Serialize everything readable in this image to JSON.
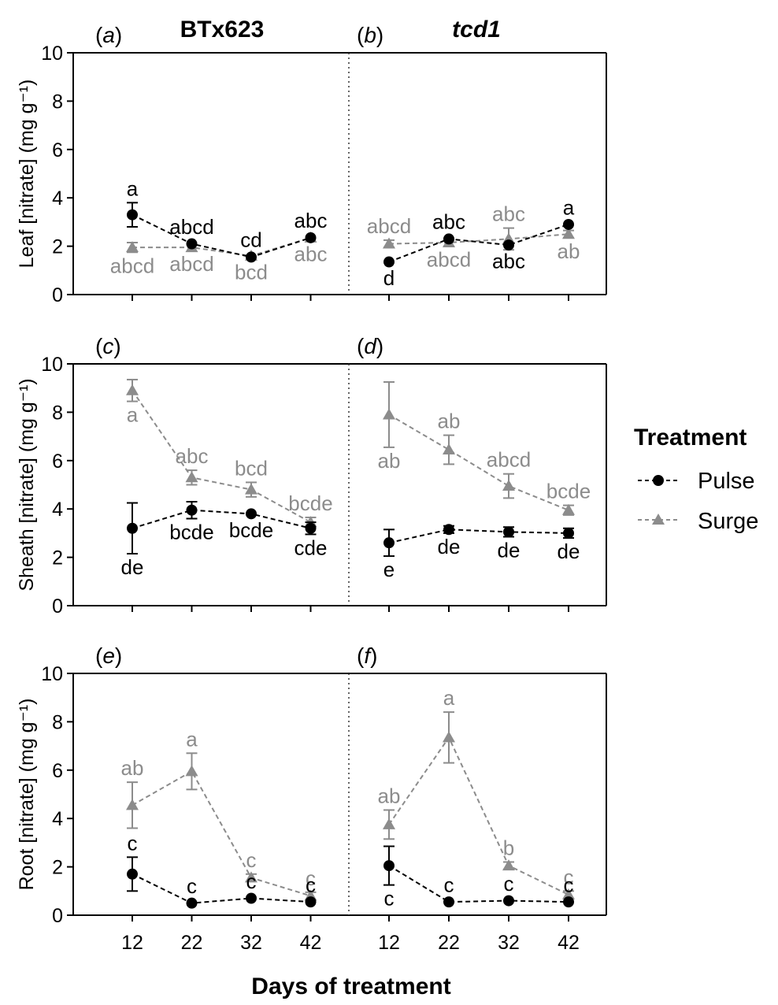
{
  "x_axis_title": "Days of treatment",
  "columns": [
    {
      "title": "BTx623",
      "italic": false
    },
    {
      "title": "tcd1",
      "italic": true
    }
  ],
  "legend": {
    "title": "Treatment",
    "items": [
      {
        "name": "Pulse",
        "color": "#000000",
        "marker": "circle"
      },
      {
        "name": "Surge",
        "color": "#8c8c8c",
        "marker": "triangle"
      }
    ]
  },
  "chart_data": [
    {
      "type": "line",
      "row": 0,
      "col": 0,
      "panel": "a",
      "ylabel": "Leaf [nitrate] (mg g⁻¹)",
      "x": [
        12,
        22,
        32,
        42
      ],
      "ylim": [
        0,
        10
      ],
      "yticks": [
        0,
        2,
        4,
        6,
        8,
        10
      ],
      "series": [
        {
          "name": "Pulse",
          "values": [
            3.3,
            2.1,
            1.55,
            2.35
          ],
          "errors": [
            0.5,
            0.1,
            0.1,
            0.1
          ],
          "labels": [
            "a",
            "abcd",
            "cd",
            "abc"
          ],
          "label_pos": [
            "above",
            "above",
            "above",
            "above"
          ]
        },
        {
          "name": "Surge",
          "values": [
            1.95,
            1.95,
            1.6,
            2.35
          ],
          "errors": [
            0.2,
            0.1,
            0.1,
            0.1
          ],
          "labels": [
            "abcd",
            "abcd",
            "bcd",
            "abc"
          ],
          "label_pos": [
            "below",
            "below",
            "below",
            "below"
          ]
        }
      ]
    },
    {
      "type": "line",
      "row": 0,
      "col": 1,
      "panel": "b",
      "ylabel": "",
      "x": [
        12,
        22,
        32,
        42
      ],
      "ylim": [
        0,
        10
      ],
      "yticks": [
        0,
        2,
        4,
        6,
        8,
        10
      ],
      "series": [
        {
          "name": "Pulse",
          "values": [
            1.35,
            2.3,
            2.05,
            2.9
          ],
          "errors": [
            0.1,
            0.1,
            0.1,
            0.1
          ],
          "labels": [
            "d",
            "abc",
            "abc",
            "a"
          ],
          "label_pos": [
            "below",
            "above",
            "below",
            "above"
          ]
        },
        {
          "name": "Surge",
          "values": [
            2.1,
            2.15,
            2.3,
            2.5
          ],
          "errors": [
            0.15,
            0.15,
            0.45,
            0.15
          ],
          "labels": [
            "abcd",
            "abcd",
            "abc",
            "ab"
          ],
          "label_pos": [
            "above",
            "below",
            "above",
            "below"
          ]
        }
      ]
    },
    {
      "type": "line",
      "row": 1,
      "col": 0,
      "panel": "c",
      "ylabel": "Sheath [nitrate] (mg g⁻¹)",
      "x": [
        12,
        22,
        32,
        42
      ],
      "ylim": [
        0,
        10
      ],
      "yticks": [
        0,
        2,
        4,
        6,
        8,
        10
      ],
      "series": [
        {
          "name": "Pulse",
          "values": [
            3.2,
            3.95,
            3.8,
            3.2
          ],
          "errors": [
            1.05,
            0.35,
            0.1,
            0.25
          ],
          "labels": [
            "de",
            "bcde",
            "bcde",
            "cde"
          ],
          "label_pos": [
            "below",
            "below",
            "below",
            "below"
          ]
        },
        {
          "name": "Surge",
          "values": [
            8.9,
            5.3,
            4.8,
            3.45
          ],
          "errors": [
            0.45,
            0.3,
            0.3,
            0.2
          ],
          "labels": [
            "a",
            "abc",
            "bcd",
            "bcde"
          ],
          "label_pos": [
            "below",
            "above",
            "above",
            "above"
          ]
        }
      ]
    },
    {
      "type": "line",
      "row": 1,
      "col": 1,
      "panel": "d",
      "ylabel": "",
      "x": [
        12,
        22,
        32,
        42
      ],
      "ylim": [
        0,
        10
      ],
      "yticks": [
        0,
        2,
        4,
        6,
        8,
        10
      ],
      "series": [
        {
          "name": "Pulse",
          "values": [
            2.6,
            3.15,
            3.05,
            3.0
          ],
          "errors": [
            0.55,
            0.15,
            0.2,
            0.2
          ],
          "labels": [
            "e",
            "de",
            "de",
            "de"
          ],
          "label_pos": [
            "below",
            "below",
            "below",
            "below"
          ]
        },
        {
          "name": "Surge",
          "values": [
            7.9,
            6.45,
            4.95,
            3.95
          ],
          "errors": [
            1.35,
            0.6,
            0.5,
            0.2
          ],
          "labels": [
            "ab",
            "ab",
            "abcd",
            "bcde"
          ],
          "label_pos": [
            "below",
            "above",
            "above",
            "above"
          ]
        }
      ]
    },
    {
      "type": "line",
      "row": 2,
      "col": 0,
      "panel": "e",
      "ylabel": "Root [nitrate] (mg g⁻¹)",
      "x": [
        12,
        22,
        32,
        42
      ],
      "ylim": [
        0,
        10
      ],
      "yticks": [
        0,
        2,
        4,
        6,
        8,
        10
      ],
      "series": [
        {
          "name": "Pulse",
          "values": [
            1.7,
            0.5,
            0.7,
            0.55
          ],
          "errors": [
            0.7,
            0.05,
            0.05,
            0.05
          ],
          "labels": [
            "c",
            "c",
            "c",
            "c"
          ],
          "label_pos": [
            "above",
            "above",
            "above",
            "above"
          ]
        },
        {
          "name": "Surge",
          "values": [
            4.55,
            5.95,
            1.55,
            0.8
          ],
          "errors": [
            0.95,
            0.75,
            0.15,
            0.15
          ],
          "labels": [
            "ab",
            "a",
            "c",
            "c"
          ],
          "label_pos": [
            "above",
            "above",
            "above",
            "above"
          ]
        }
      ]
    },
    {
      "type": "line",
      "row": 2,
      "col": 1,
      "panel": "f",
      "ylabel": "",
      "x": [
        12,
        22,
        32,
        42
      ],
      "ylim": [
        0,
        10
      ],
      "yticks": [
        0,
        2,
        4,
        6,
        8,
        10
      ],
      "series": [
        {
          "name": "Pulse",
          "values": [
            2.05,
            0.55,
            0.6,
            0.55
          ],
          "errors": [
            0.8,
            0.05,
            0.05,
            0.05
          ],
          "labels": [
            "c",
            "c",
            "c",
            "c"
          ],
          "label_pos": [
            "below",
            "above",
            "above",
            "above"
          ]
        },
        {
          "name": "Surge",
          "values": [
            3.75,
            7.35,
            2.05,
            0.85
          ],
          "errors": [
            0.6,
            1.05,
            0.15,
            0.15
          ],
          "labels": [
            "ab",
            "a",
            "b",
            "c"
          ],
          "label_pos": [
            "above",
            "above",
            "above",
            "above"
          ]
        }
      ]
    }
  ]
}
